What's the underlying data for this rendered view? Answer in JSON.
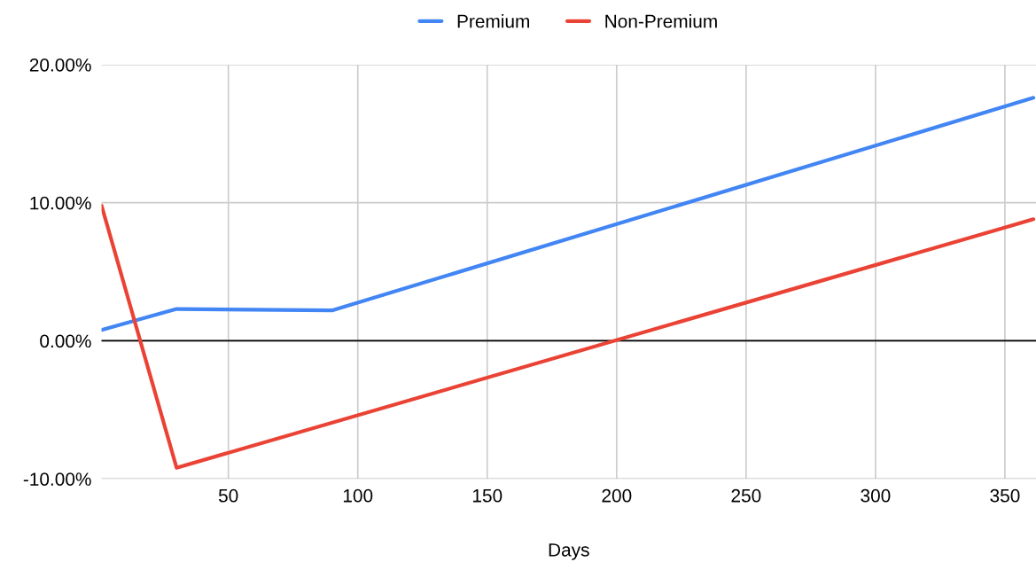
{
  "chart_data": {
    "type": "line",
    "xlabel": "Days",
    "x": [
      1,
      30,
      90,
      361
    ],
    "series": [
      {
        "name": "Premium",
        "color": "#4285f4",
        "values": [
          0.78,
          2.3,
          2.2,
          17.6
        ]
      },
      {
        "name": "Non-Premium",
        "color": "#ea4335",
        "x": [
          1,
          30,
          361
        ],
        "values": [
          9.8,
          -9.2,
          8.8
        ]
      }
    ],
    "xlim": [
      1,
      362
    ],
    "xticks": [
      50,
      100,
      150,
      200,
      250,
      300,
      350
    ],
    "ylim": [
      -10,
      20
    ],
    "yticks": [
      {
        "value": -10,
        "label": "-10.00%"
      },
      {
        "value": 0,
        "label": "0.00%"
      },
      {
        "value": 10,
        "label": "10.00%"
      },
      {
        "value": 20,
        "label": "20.00%"
      }
    ],
    "ref_lines": [
      {
        "axis": "y",
        "value": 0,
        "color": "#000000"
      }
    ],
    "grid": true,
    "legend": "top",
    "marker": "none",
    "line_style": "solid"
  }
}
